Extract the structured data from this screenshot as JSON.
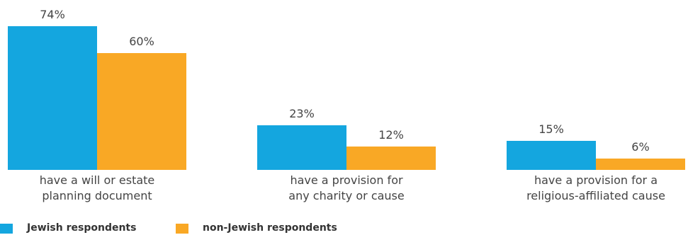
{
  "chart_data": {
    "type": "bar",
    "categories": [
      "have a will or estate\nplanning document",
      "have a provision for\nany charity or cause",
      "have a provision for a\nreligious-affiliated cause"
    ],
    "series": [
      {
        "name": "Jewish respondents",
        "color": "#14a6df",
        "values": [
          74,
          23,
          15
        ],
        "value_labels": [
          "74%",
          "23%",
          "15%"
        ]
      },
      {
        "name": "non-Jewish respondents",
        "color": "#f9a825",
        "values": [
          60,
          12,
          6
        ],
        "value_labels": [
          "60%",
          "12%",
          "6%"
        ]
      }
    ]
  }
}
